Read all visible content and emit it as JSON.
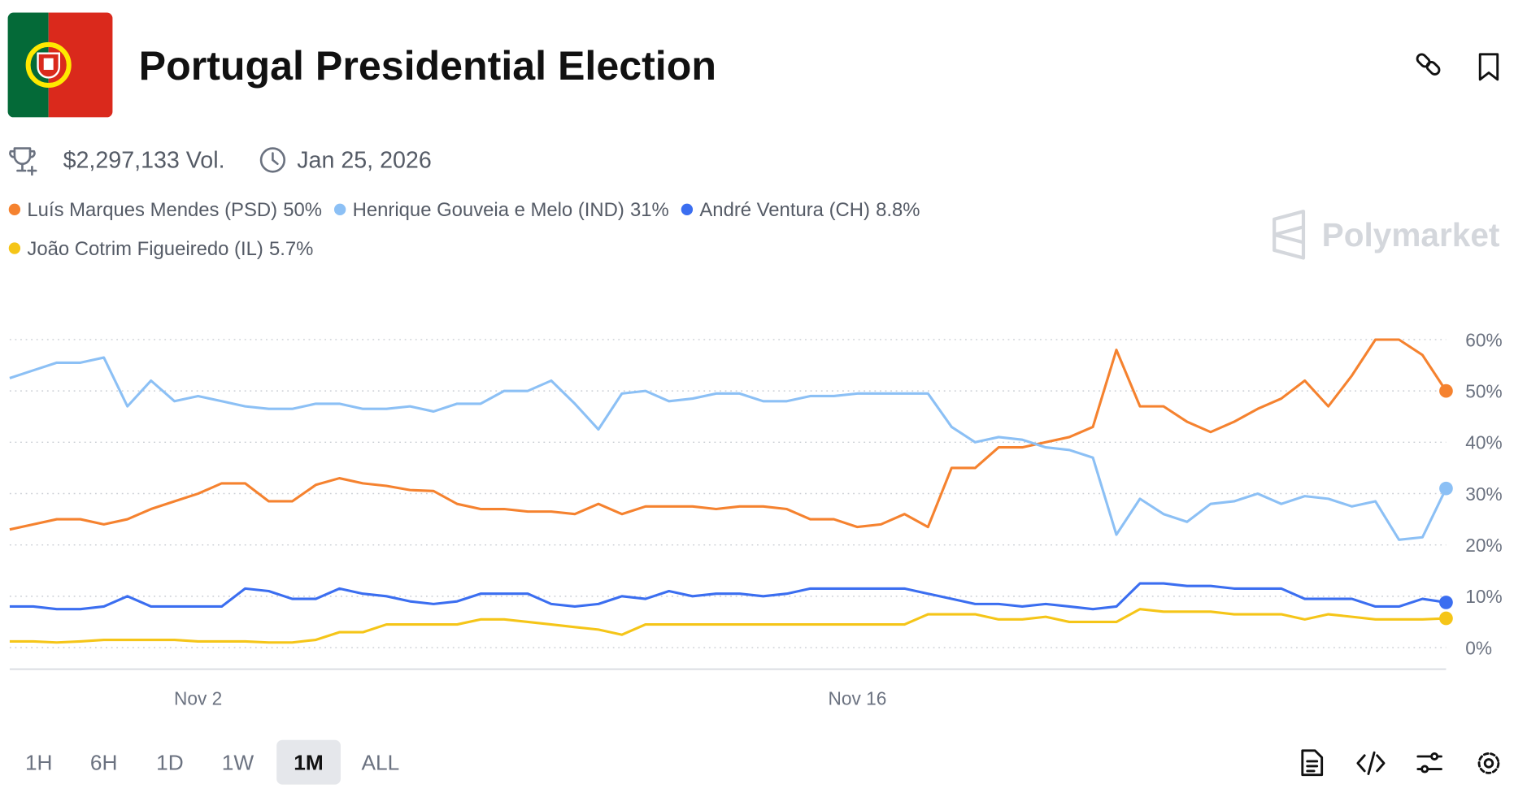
{
  "header": {
    "title": "Portugal Presidential Election"
  },
  "stats": {
    "volume": "$2,297,133 Vol.",
    "date": "Jan 25, 2026"
  },
  "watermark": "Polymarket",
  "range_buttons": {
    "items": [
      "1H",
      "6H",
      "1D",
      "1W",
      "1M",
      "ALL"
    ],
    "selected": "1M"
  },
  "chart_data": {
    "type": "line",
    "categories": [
      null,
      null,
      null,
      null,
      null,
      null,
      null,
      null,
      "Nov 2",
      null,
      null,
      null,
      null,
      null,
      null,
      null,
      null,
      null,
      null,
      null,
      null,
      null,
      null,
      null,
      null,
      null,
      null,
      null,
      null,
      null,
      null,
      null,
      null,
      null,
      null,
      null,
      "Nov 16",
      null,
      null,
      null,
      null,
      null,
      null,
      null,
      null,
      null,
      null,
      null,
      null,
      null,
      null,
      null,
      null,
      null,
      null,
      null,
      null,
      null,
      null,
      null,
      null,
      null
    ],
    "ylim": [
      -4.2,
      64
    ],
    "yticks": [
      {
        "value": 0,
        "label": "0%"
      },
      {
        "value": 10,
        "label": "10%"
      },
      {
        "value": 20,
        "label": "20%"
      },
      {
        "value": 30,
        "label": "30%"
      },
      {
        "value": 40,
        "label": "40%"
      },
      {
        "value": 50,
        "label": "50%"
      },
      {
        "value": 60,
        "label": "60%"
      }
    ],
    "grid": true,
    "series": [
      {
        "name": "Luís Marques Mendes (PSD)",
        "legend_value": "50%",
        "color": "#f5822f",
        "values": [
          23,
          24,
          25,
          25,
          24,
          25,
          27,
          28.5,
          30,
          32,
          32,
          28.5,
          28.5,
          31.7,
          33,
          32,
          31.5,
          30.7,
          30.5,
          28,
          27,
          27,
          26.5,
          26.5,
          26,
          28,
          26,
          27.5,
          27.5,
          27.5,
          27,
          27.5,
          27.5,
          27,
          25,
          25,
          23.5,
          24,
          26,
          23.5,
          35,
          35,
          39,
          39,
          40,
          41,
          43,
          58,
          47,
          47,
          44,
          42,
          44,
          46.5,
          48.5,
          52,
          47,
          53,
          60,
          60,
          57,
          50
        ]
      },
      {
        "name": "Henrique Gouveia e Melo (IND)",
        "legend_value": "31%",
        "color": "#8cc0f5",
        "values": [
          52.5,
          54,
          55.5,
          55.5,
          56.5,
          47,
          52,
          48,
          49,
          48,
          47,
          46.5,
          46.5,
          47.5,
          47.5,
          46.5,
          46.5,
          47,
          46,
          47.5,
          47.5,
          50,
          50,
          52,
          47.5,
          42.5,
          49.5,
          50,
          48,
          48.5,
          49.5,
          49.5,
          48,
          48,
          49,
          49,
          49.5,
          49.5,
          49.5,
          49.5,
          43,
          40,
          41,
          40.5,
          39,
          38.5,
          37,
          22,
          29,
          26,
          24.5,
          28,
          28.5,
          30,
          28,
          29.5,
          29,
          27.5,
          28.5,
          21,
          21.5,
          31
        ]
      },
      {
        "name": "André Ventura (CH)",
        "legend_value": "8.8%",
        "color": "#3b6ef0",
        "values": [
          8,
          8,
          7.5,
          7.5,
          8,
          10,
          8,
          8,
          8,
          8,
          11.5,
          11,
          9.5,
          9.5,
          11.5,
          10.5,
          10,
          9,
          8.5,
          9,
          10.5,
          10.5,
          10.5,
          8.5,
          8,
          8.5,
          10,
          9.5,
          11,
          10,
          10.5,
          10.5,
          10,
          10.5,
          11.5,
          11.5,
          11.5,
          11.5,
          11.5,
          10.5,
          9.5,
          8.5,
          8.5,
          8,
          8.5,
          8,
          7.5,
          8,
          12.5,
          12.5,
          12,
          12,
          11.5,
          11.5,
          11.5,
          9.5,
          9.5,
          9.5,
          8,
          8,
          9.5,
          8.8
        ]
      },
      {
        "name": "João Cotrim Figueiredo (IL)",
        "legend_value": "5.7%",
        "color": "#f5c518",
        "values": [
          1.2,
          1.2,
          1,
          1.2,
          1.5,
          1.5,
          1.5,
          1.5,
          1.2,
          1.2,
          1.2,
          1,
          1,
          1.5,
          3,
          3,
          4.5,
          4.5,
          4.5,
          4.5,
          5.5,
          5.5,
          5,
          4.5,
          4,
          3.5,
          2.5,
          4.5,
          4.5,
          4.5,
          4.5,
          4.5,
          4.5,
          4.5,
          4.5,
          4.5,
          4.5,
          4.5,
          4.5,
          6.5,
          6.5,
          6.5,
          5.5,
          5.5,
          6,
          5,
          5,
          5,
          7.5,
          7,
          7,
          7,
          6.5,
          6.5,
          6.5,
          5.5,
          6.5,
          6,
          5.5,
          5.5,
          5.5,
          5.7
        ]
      }
    ]
  }
}
